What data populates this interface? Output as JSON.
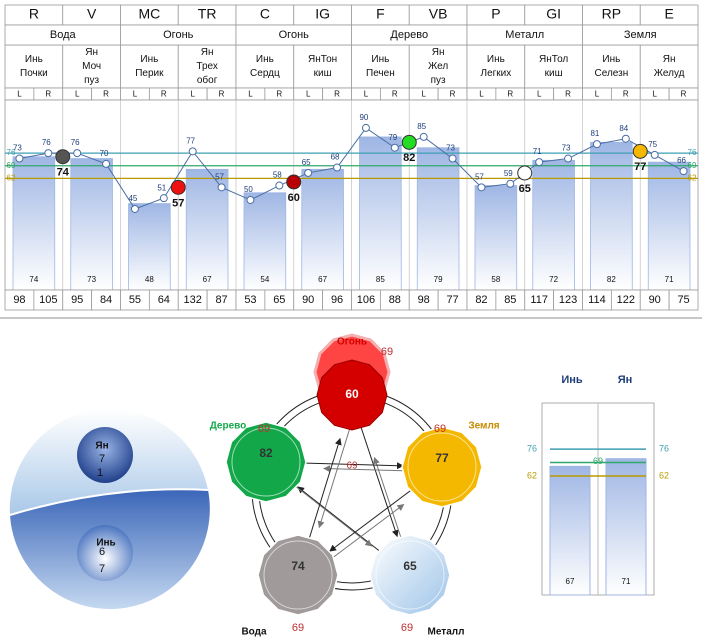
{
  "table": {
    "codes": [
      "R",
      "V",
      "MC",
      "TR",
      "C",
      "IG",
      "F",
      "VB",
      "P",
      "GI",
      "RP",
      "E"
    ],
    "groups": [
      "Вода",
      "Огонь",
      "Огонь",
      "Дерево",
      "Металл",
      "Земля"
    ],
    "names": [
      [
        "Инь",
        "Почки"
      ],
      [
        "Ян",
        "Моч",
        "пуз"
      ],
      [
        "Инь",
        "Перик"
      ],
      [
        "Ян",
        "Трех",
        "обог"
      ],
      [
        "Инь",
        "Сердц"
      ],
      [
        "ЯнТон",
        "киш"
      ],
      [
        "Инь",
        "Печен"
      ],
      [
        "Ян",
        "Жел",
        "пуз"
      ],
      [
        "Инь",
        "Легких"
      ],
      [
        "ЯнТол",
        "киш"
      ],
      [
        "Инь",
        "Селезн"
      ],
      [
        "Ян",
        "Желуд"
      ]
    ],
    "lr": [
      "L",
      "R"
    ],
    "bottom": [
      98,
      105,
      95,
      84,
      55,
      64,
      132,
      87,
      53,
      65,
      90,
      96,
      106,
      88,
      98,
      77,
      82,
      85,
      117,
      123,
      114,
      122,
      90,
      75
    ]
  },
  "chart_data": [
    {
      "type": "meridian",
      "values": [
        74,
        73,
        48,
        67,
        54,
        67,
        85,
        79,
        58,
        72,
        82,
        71
      ],
      "points": [
        73,
        76,
        76,
        70,
        45,
        51,
        77,
        57,
        50,
        58,
        65,
        68,
        90,
        79,
        85,
        73,
        57,
        59,
        71,
        73,
        81,
        84,
        75,
        66
      ],
      "pair_values": [
        74,
        57,
        60,
        82,
        65,
        77
      ],
      "pair_colors": [
        "#555555",
        "#ee1111",
        "#b80000",
        "#22dd22",
        "#ffffff",
        "#f5b800"
      ],
      "levels": [
        76,
        69,
        62
      ],
      "level_colors": [
        "#3f9fb3",
        "#2fa86a",
        "#b89a00"
      ],
      "bar_color": "#9fb6e4",
      "line_color": "#4a6fa5",
      "ylim": [
        0,
        105.5
      ]
    },
    {
      "type": "mini_bar",
      "labels": [
        "Инь",
        "Ян"
      ],
      "values": [
        67,
        71
      ],
      "ylim": [
        0,
        100
      ]
    }
  ],
  "elements": [
    {
      "name": "Огонь",
      "values": [
        57,
        60
      ],
      "norm": 69,
      "color": "#d40000"
    },
    {
      "name": "Земля",
      "values": [
        77
      ],
      "norm": 69,
      "color": "#f5b800"
    },
    {
      "name": "Металл",
      "values": [
        65
      ],
      "norm": 69,
      "color": "#cfe2f3"
    },
    {
      "name": "Вода",
      "values": [
        74
      ],
      "norm": 69,
      "color": "#a09a9a"
    },
    {
      "name": "Дерево",
      "values": [
        82
      ],
      "norm": 69,
      "color": "#12a84a"
    }
  ],
  "center_value": 69,
  "yinyang": {
    "yang": {
      "label": "Ян",
      "values": [
        7,
        1
      ]
    },
    "yin": {
      "label": "Инь",
      "values": [
        6,
        7
      ]
    }
  }
}
